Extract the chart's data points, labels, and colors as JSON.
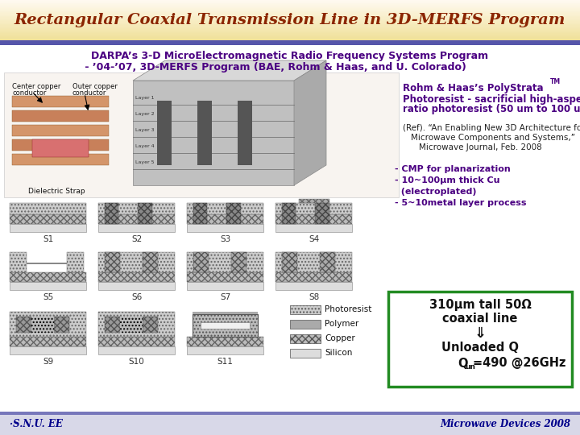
{
  "title": "Rectangular Coaxial Transmission Line in 3D-MERFS Program",
  "title_color": "#8B2500",
  "bg_color": "#FFFFFF",
  "subtitle_line1": "DARPA’s 3-D MicroElectromagnetic Radio Frequency Systems Program",
  "subtitle_line2": " - ’04-’07, 3D-MERFS Program (BAE, Rohm & Haas, and U. Colorado)",
  "subtitle_color": "#4B0082",
  "bullet_text_line1": "- CMP for planarization",
  "bullet_text_line2": "- 10~100μm thick Cu",
  "bullet_text_line3": "  (electroplated)",
  "bullet_text_line4": "- 5~10metal layer process",
  "box_text_line1": "310μm tall 50Ω",
  "box_text_line2": "coaxial line",
  "box_text_line3": "⇓",
  "box_text_line4": "Unloaded Q",
  "box_text_line5": "=490 @26GHz",
  "box_color": "#228B22",
  "footer_left": "·S.N.U. EE",
  "footer_right": "Microwave Devices 2008",
  "footer_color": "#00008B",
  "footer_bg": "#D8D8E8",
  "header_sep_color": "#6666BB",
  "step_labels": [
    "S1",
    "S2",
    "S3",
    "S4",
    "S5",
    "S6",
    "S7",
    "S8",
    "S9",
    "S10",
    "S11"
  ],
  "legend_items": [
    "Photoresist",
    "Polymer",
    "Copper",
    "Silicon"
  ],
  "title_bar_color": "#F5E8A0"
}
